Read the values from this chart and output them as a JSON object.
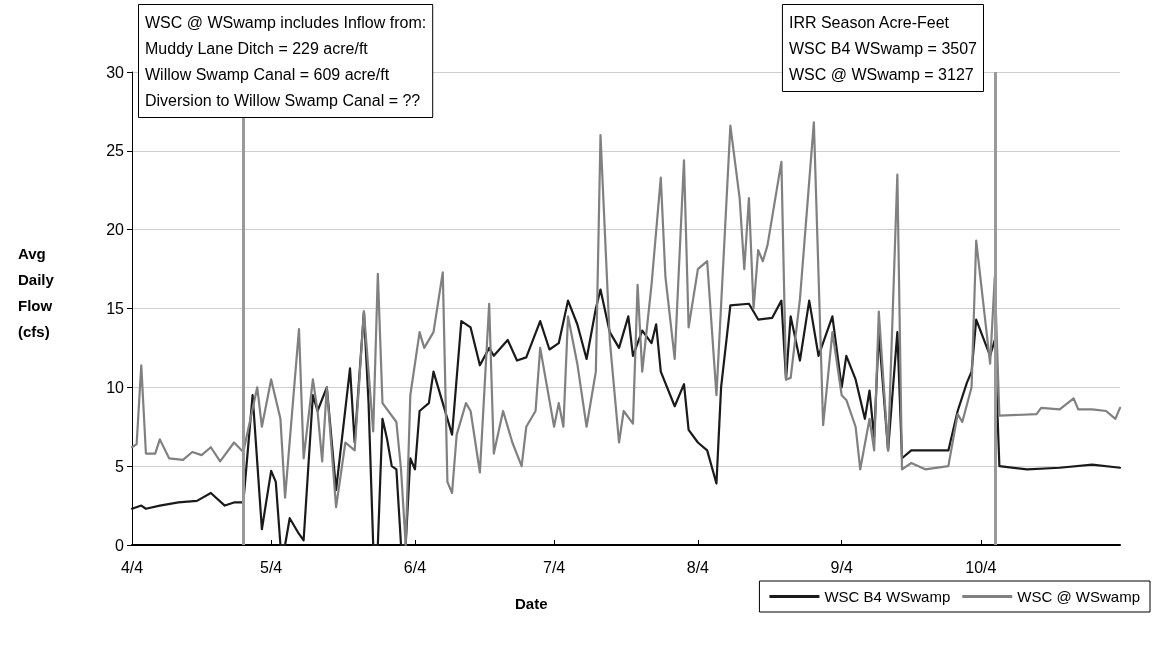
{
  "chart_data": {
    "type": "line",
    "xlabel": "Date",
    "ylabel": "Avg Daily Flow (cfs)",
    "annotations": [
      "WSC @ WSwamp includes Inflow from:\nMuddy Lane Ditch = 229 acre/ft\nWillow Swamp Canal = 609 acre/ft\nDiversion to Willow Swamp Canal = ??",
      "IRR Season Acre-Feet\nWSC B4 WSwamp = 3507\nWSC @ WSwamp = 3127"
    ],
    "xlim": [
      "--04-04",
      "--11-03"
    ],
    "xticks": [
      {
        "value": "--04-04",
        "label": "4/4"
      },
      {
        "value": "--05-04",
        "label": "5/4"
      },
      {
        "value": "--06-04",
        "label": "6/4"
      },
      {
        "value": "--07-04",
        "label": "7/4"
      },
      {
        "value": "--08-04",
        "label": "8/4"
      },
      {
        "value": "--09-04",
        "label": "9/4"
      },
      {
        "value": "--10-04",
        "label": "10/4"
      }
    ],
    "ylim": [
      0,
      30
    ],
    "yticks": [
      0,
      5,
      10,
      15,
      20,
      25,
      30
    ],
    "grid": "y",
    "legend": "bottom right",
    "ref_lines": [
      {
        "axis": "x",
        "value": "--04-28",
        "color": "#999999"
      },
      {
        "axis": "x",
        "value": "--10-07",
        "color": "#999999"
      }
    ],
    "series": [
      {
        "name": "WSC B4 WSwamp",
        "color": "#1a1a1a",
        "x": [
          "--04-04",
          "--04-06",
          "--04-07",
          "--04-10",
          "--04-14",
          "--04-18",
          "--04-21",
          "--04-24",
          "--04-26",
          "--04-28",
          "--04-30",
          "--05-02",
          "--05-04",
          "--05-05",
          "--05-06",
          "--05-07",
          "--05-08",
          "--05-10",
          "--05-11",
          "--05-13",
          "--05-14",
          "--05-16",
          "--05-18",
          "--05-21",
          "--05-22",
          "--05-24",
          "--05-25",
          "--05-26",
          "--05-27",
          "--05-28",
          "--05-29",
          "--05-30",
          "--05-31",
          "--06-01",
          "--06-02",
          "--06-03",
          "--06-04",
          "--06-05",
          "--06-07",
          "--06-08",
          "--06-09",
          "--06-12",
          "--06-14",
          "--06-16",
          "--06-18",
          "--06-20",
          "--06-21",
          "--06-24",
          "--06-26",
          "--06-28",
          "--07-01",
          "--07-03",
          "--07-05",
          "--07-07",
          "--07-09",
          "--07-11",
          "--07-13",
          "--07-14",
          "--07-16",
          "--07-18",
          "--07-20",
          "--07-21",
          "--07-23",
          "--07-25",
          "--07-26",
          "--07-27",
          "--07-30",
          "--08-01",
          "--08-02",
          "--08-04",
          "--08-06",
          "--08-08",
          "--08-09",
          "--08-11",
          "--08-15",
          "--08-17",
          "--08-20",
          "--08-22",
          "--08-23",
          "--08-24",
          "--08-26",
          "--08-28",
          "--08-30",
          "--09-02",
          "--09-04",
          "--09-05",
          "--09-07",
          "--09-09",
          "--09-10",
          "--09-11",
          "--09-12",
          "--09-14",
          "--09-16",
          "--09-17",
          "--09-19",
          "--09-27",
          "--09-29",
          "--10-01",
          "--10-02",
          "--10-03",
          "--10-06",
          "--10-07",
          "--10-08",
          "--10-14",
          "--10-21",
          "--10-28",
          "--11-03"
        ],
        "values": [
          2.3,
          2.5,
          2.3,
          2.5,
          2.7,
          2.8,
          3.3,
          2.5,
          2.7,
          2.7,
          9.5,
          1.0,
          4.7,
          4.0,
          0,
          0,
          1.7,
          0.7,
          0.3,
          9.5,
          8.5,
          10,
          3.5,
          11.2,
          6.5,
          14.8,
          9,
          0,
          0,
          8,
          6.7,
          5,
          4.8,
          0,
          0,
          5.5,
          4.8,
          8.5,
          9,
          11,
          10,
          7,
          14.2,
          13.8,
          11.4,
          12.5,
          12,
          13,
          11.7,
          11.9,
          14.2,
          12.4,
          12.8,
          15.5,
          14,
          11.8,
          15,
          16.2,
          13.5,
          12.5,
          14.5,
          12,
          13.6,
          12.8,
          14,
          11,
          8.8,
          10.2,
          7.3,
          6.5,
          6,
          3.9,
          10,
          15.2,
          15.3,
          14.3,
          14.4,
          15.5,
          10.5,
          14.5,
          11.7,
          15.5,
          12,
          14.5,
          10,
          12,
          10.5,
          8,
          9.8,
          6.8,
          13.5,
          6,
          13.5,
          5.5,
          6,
          6,
          8.5,
          10.3,
          11,
          14.3,
          12,
          13,
          5.0,
          4.8,
          4.9,
          5.1,
          4.9
        ]
      },
      {
        "name": "WSC @ WSwamp",
        "color": "#808080",
        "x": [
          "--04-04",
          "--04-05",
          "--04-06",
          "--04-07",
          "--04-09",
          "--04-10",
          "--04-12",
          "--04-15",
          "--04-17",
          "--04-19",
          "--04-21",
          "--04-23",
          "--04-26",
          "--04-28",
          "--05-01",
          "--05-02",
          "--05-04",
          "--05-06",
          "--05-07",
          "--05-10",
          "--05-11",
          "--05-13",
          "--05-14",
          "--05-15",
          "--05-16",
          "--05-18",
          "--05-20",
          "--05-22",
          "--05-24",
          "--05-26",
          "--05-27",
          "--05-28",
          "--05-31",
          "--06-01",
          "--06-02",
          "--06-03",
          "--06-05",
          "--06-06",
          "--06-08",
          "--06-10",
          "--06-11",
          "--06-12",
          "--06-13",
          "--06-15",
          "--06-16",
          "--06-18",
          "--06-20",
          "--06-21",
          "--06-23",
          "--06-25",
          "--06-27",
          "--06-28",
          "--06-30",
          "--07-01",
          "--07-04",
          "--07-05",
          "--07-06",
          "--07-07",
          "--07-09",
          "--07-11",
          "--07-13",
          "--07-14",
          "--07-16",
          "--07-18",
          "--07-19",
          "--07-21",
          "--07-22",
          "--07-23",
          "--07-25",
          "--07-27",
          "--07-28",
          "--07-30",
          "--08-01",
          "--08-02",
          "--08-04",
          "--08-06",
          "--08-08",
          "--08-11",
          "--08-13",
          "--08-14",
          "--08-15",
          "--08-16",
          "--08-17",
          "--08-18",
          "--08-19",
          "--08-22",
          "--08-23",
          "--08-24",
          "--08-26",
          "--08-29",
          "--08-31",
          "--09-02",
          "--09-04",
          "--09-05",
          "--09-07",
          "--09-08",
          "--09-10",
          "--09-11",
          "--09-12",
          "--09-14",
          "--09-16",
          "--09-17",
          "--09-19",
          "--09-22",
          "--09-27",
          "--09-29",
          "--09-30",
          "--10-02",
          "--10-03",
          "--10-06",
          "--10-07",
          "--10-08",
          "--10-16",
          "--10-17",
          "--10-21",
          "--10-24",
          "--10-25",
          "--10-28",
          "--10-31",
          "--11-02",
          "--11-03"
        ],
        "values": [
          6.2,
          6.4,
          11.4,
          5.8,
          5.8,
          6.7,
          5.5,
          5.4,
          5.9,
          5.7,
          6.2,
          5.3,
          6.5,
          5.9,
          10,
          7.5,
          10.5,
          8,
          3,
          13.7,
          5.5,
          10.5,
          8.5,
          5.3,
          10,
          2.4,
          6.5,
          6,
          14.8,
          7.2,
          17.2,
          9,
          7.8,
          4.8,
          0,
          9.5,
          13.5,
          12.5,
          13.5,
          17.3,
          4,
          3.3,
          7,
          9,
          8.5,
          4.6,
          15.3,
          5.8,
          8.5,
          6.5,
          5,
          7.5,
          8.5,
          12.5,
          7.5,
          9,
          7.5,
          14.5,
          11.5,
          7.5,
          11,
          26,
          13,
          6.5,
          8.5,
          7.7,
          16.5,
          11,
          16.5,
          23.3,
          17,
          11.8,
          24.4,
          13.8,
          17.5,
          18,
          9.5,
          26.6,
          22,
          17.5,
          22,
          15,
          18.7,
          18,
          19,
          24.3,
          10.5,
          10.6,
          15.6,
          26.8,
          7.6,
          13.5,
          9.5,
          9.2,
          7.5,
          4.8,
          8,
          6,
          14.8,
          6,
          23.5,
          4.8,
          5.2,
          4.8,
          5.0,
          8.3,
          7.8,
          10,
          19.3,
          11.5,
          17,
          8.2,
          8.3,
          8.7,
          8.6,
          9.3,
          8.6,
          8.6,
          8.5,
          8.0,
          8.7
        ]
      }
    ]
  }
}
